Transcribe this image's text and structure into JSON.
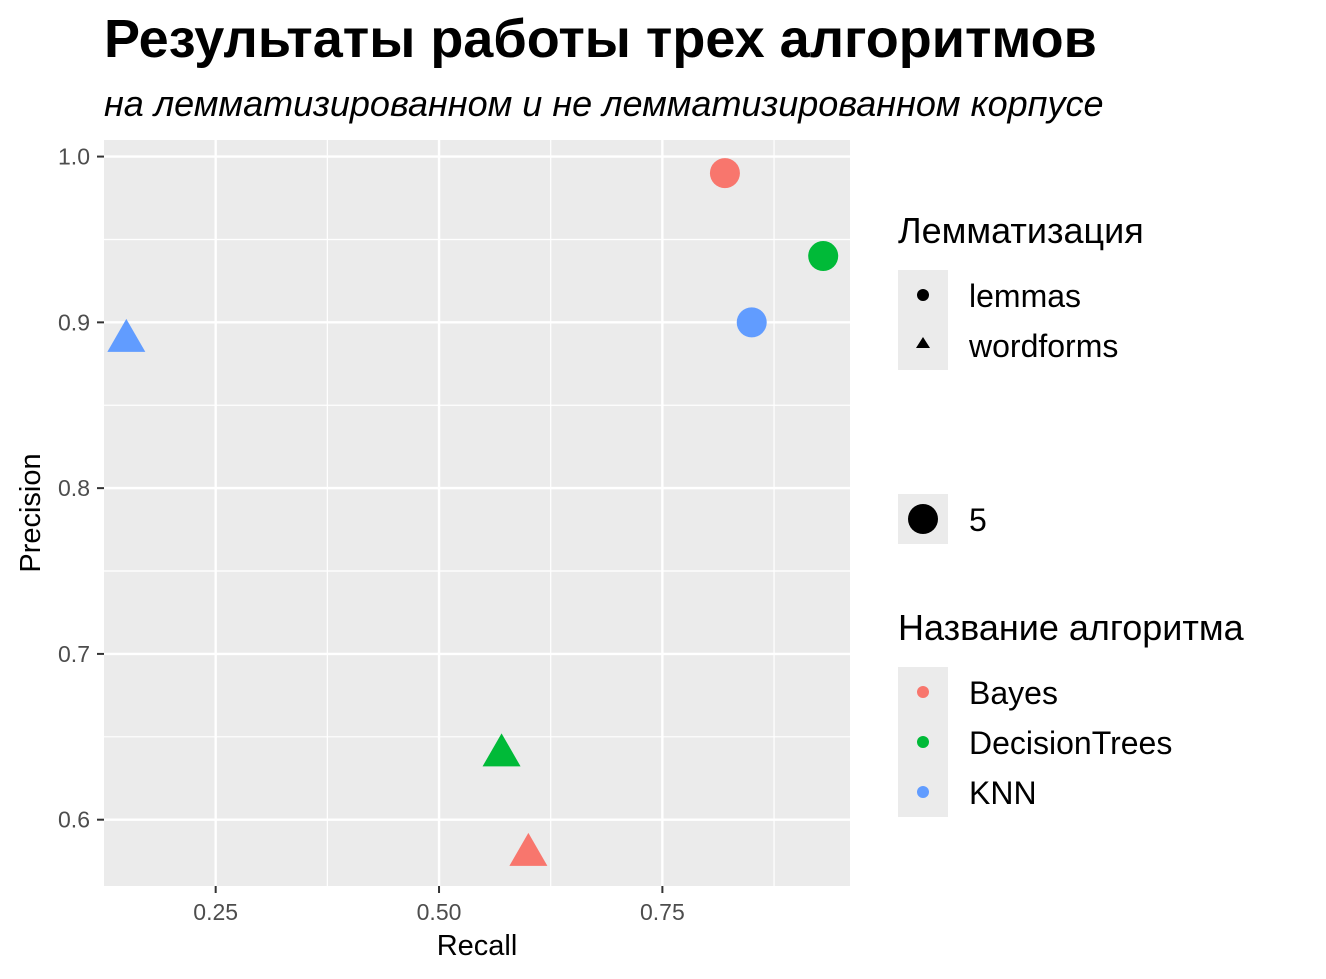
{
  "chart_data": {
    "type": "scatter",
    "title": "Результаты работы трех алгоритмов",
    "subtitle": "на лемматизированном и не лемматизированном корпусе",
    "xlabel": "Recall",
    "ylabel": "Precision",
    "xlim": [
      0.125,
      0.96
    ],
    "ylim": [
      0.56,
      1.01
    ],
    "x_ticks": [
      0.25,
      0.5,
      0.75
    ],
    "x_tick_labels": [
      "0.25",
      "0.50",
      "0.75"
    ],
    "y_ticks": [
      0.6,
      0.7,
      0.8,
      0.9,
      1.0
    ],
    "y_tick_labels": [
      "0.6",
      "0.7",
      "0.8",
      "0.9",
      "1.0"
    ],
    "grid": true,
    "legend_position": "right",
    "points": [
      {
        "algorithm": "Bayes",
        "lemmatization": "lemmas",
        "x": 0.82,
        "y": 0.99
      },
      {
        "algorithm": "DecisionTrees",
        "lemmatization": "lemmas",
        "x": 0.93,
        "y": 0.94
      },
      {
        "algorithm": "KNN",
        "lemmatization": "lemmas",
        "x": 0.85,
        "y": 0.9
      },
      {
        "algorithm": "KNN",
        "lemmatization": "wordforms",
        "x": 0.15,
        "y": 0.89
      },
      {
        "algorithm": "DecisionTrees",
        "lemmatization": "wordforms",
        "x": 0.57,
        "y": 0.64
      },
      {
        "algorithm": "Bayes",
        "lemmatization": "wordforms",
        "x": 0.6,
        "y": 0.58
      }
    ],
    "legend_shape": {
      "title": "Лемматизация",
      "entries": [
        {
          "label": "lemmas",
          "shape": "circle"
        },
        {
          "label": "wordforms",
          "shape": "triangle"
        }
      ]
    },
    "legend_size": {
      "entries": [
        {
          "label": "5",
          "shape": "circle"
        }
      ]
    },
    "legend_color": {
      "title": "Название алгоритма",
      "entries": [
        {
          "label": "Bayes",
          "color": "#F8766D"
        },
        {
          "label": "DecisionTrees",
          "color": "#00BA38"
        },
        {
          "label": "KNN",
          "color": "#619CFF"
        }
      ]
    }
  }
}
